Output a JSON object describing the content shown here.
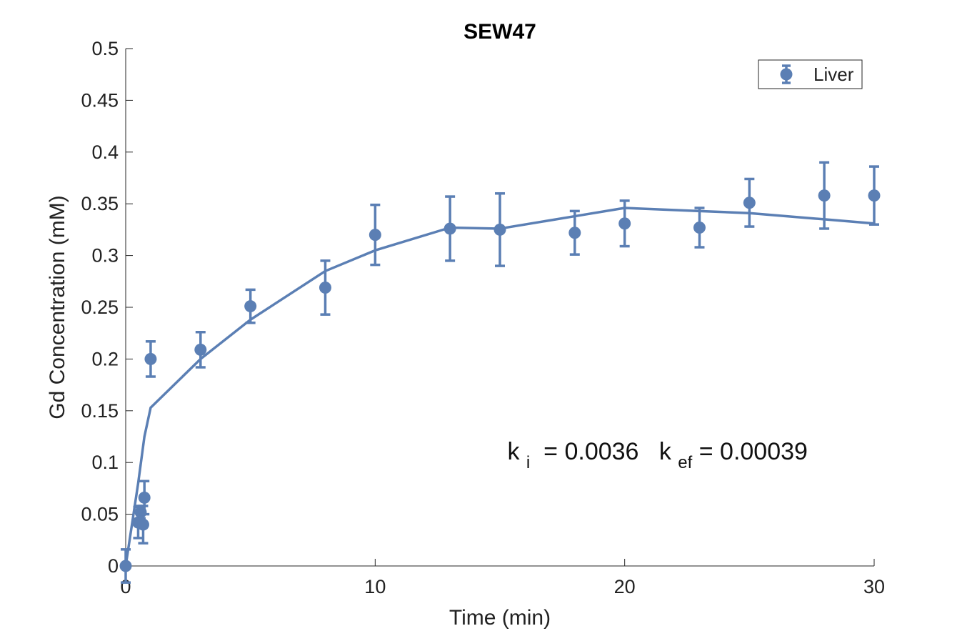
{
  "chart_data": {
    "type": "scatter",
    "title": "SEW47",
    "xlabel": "Time (min)",
    "ylabel": "Gd Concentration (mM)",
    "xlim": [
      0,
      30
    ],
    "ylim": [
      0,
      0.5
    ],
    "xticks": [
      0,
      10,
      20,
      30
    ],
    "yticks": [
      0,
      0.05,
      0.1,
      0.15,
      0.2,
      0.25,
      0.3,
      0.35,
      0.4,
      0.45,
      0.5
    ],
    "grid": false,
    "legend_position": "top-right",
    "colors": {
      "series": "#5b7fb4",
      "axis": "#262626"
    },
    "series": [
      {
        "name": "Liver",
        "style": "errorbar-markers",
        "x": [
          0,
          0.5,
          0.6,
          0.7,
          0.75,
          1,
          3,
          5,
          8,
          10,
          13,
          15,
          18,
          20,
          23,
          25,
          28,
          30
        ],
        "y": [
          0,
          0.042,
          0.052,
          0.04,
          0.066,
          0.2,
          0.209,
          0.251,
          0.269,
          0.32,
          0.326,
          0.325,
          0.322,
          0.331,
          0.327,
          0.351,
          0.358,
          0.358
        ],
        "err": [
          0.016,
          0.015,
          0.006,
          0.018,
          0.016,
          0.017,
          0.017,
          0.016,
          0.026,
          0.029,
          0.031,
          0.035,
          0.021,
          0.022,
          0.019,
          0.023,
          0.032,
          0.028
        ]
      },
      {
        "style": "line",
        "x": [
          0,
          0.25,
          0.5,
          0.75,
          1,
          3,
          5,
          8,
          10,
          13,
          15,
          18,
          20,
          23,
          25,
          28,
          30
        ],
        "y": [
          0,
          0.04,
          0.08,
          0.125,
          0.153,
          0.2,
          0.238,
          0.285,
          0.305,
          0.327,
          0.326,
          0.338,
          0.346,
          0.343,
          0.341,
          0.335,
          0.331
        ]
      }
    ],
    "annotation": {
      "k1_main": "k",
      "k1_sub": "i",
      "k1_value": " = 0.0036  ",
      "k2_main": "k",
      "k2_sub": "ef",
      "k2_value": " = 0.00039",
      "x": 15.3,
      "y": 0.103
    }
  }
}
